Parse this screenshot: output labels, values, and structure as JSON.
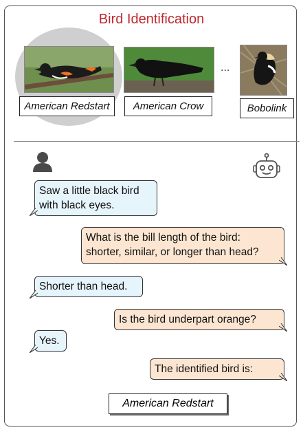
{
  "title": "Bird Identification",
  "candidates": [
    {
      "label": "American Redstart"
    },
    {
      "label": "American Crow"
    },
    {
      "label": "Bobolink"
    }
  ],
  "ellipsis": "...",
  "dialogue": [
    {
      "speaker": "user",
      "text_lines": [
        "Saw a little black bird",
        "with black eyes."
      ]
    },
    {
      "speaker": "bot",
      "text_lines": [
        "What is the bill length of the bird:",
        "shorter, similar, or longer than head?"
      ]
    },
    {
      "speaker": "user",
      "text_lines": [
        "Shorter than head."
      ]
    },
    {
      "speaker": "bot",
      "text_lines": [
        "Is the bird underpart orange?"
      ]
    },
    {
      "speaker": "user",
      "text_lines": [
        "Yes."
      ]
    },
    {
      "speaker": "bot",
      "text_lines": [
        "The identified bird is:"
      ]
    }
  ],
  "answer": "American Redstart",
  "colors": {
    "title": "#c0282d",
    "user_bubble": "#e6f4fb",
    "bot_bubble": "#fce6d2",
    "highlight": "#cfcfcf"
  },
  "icons": {
    "user": "person-icon",
    "bot": "robot-icon"
  }
}
